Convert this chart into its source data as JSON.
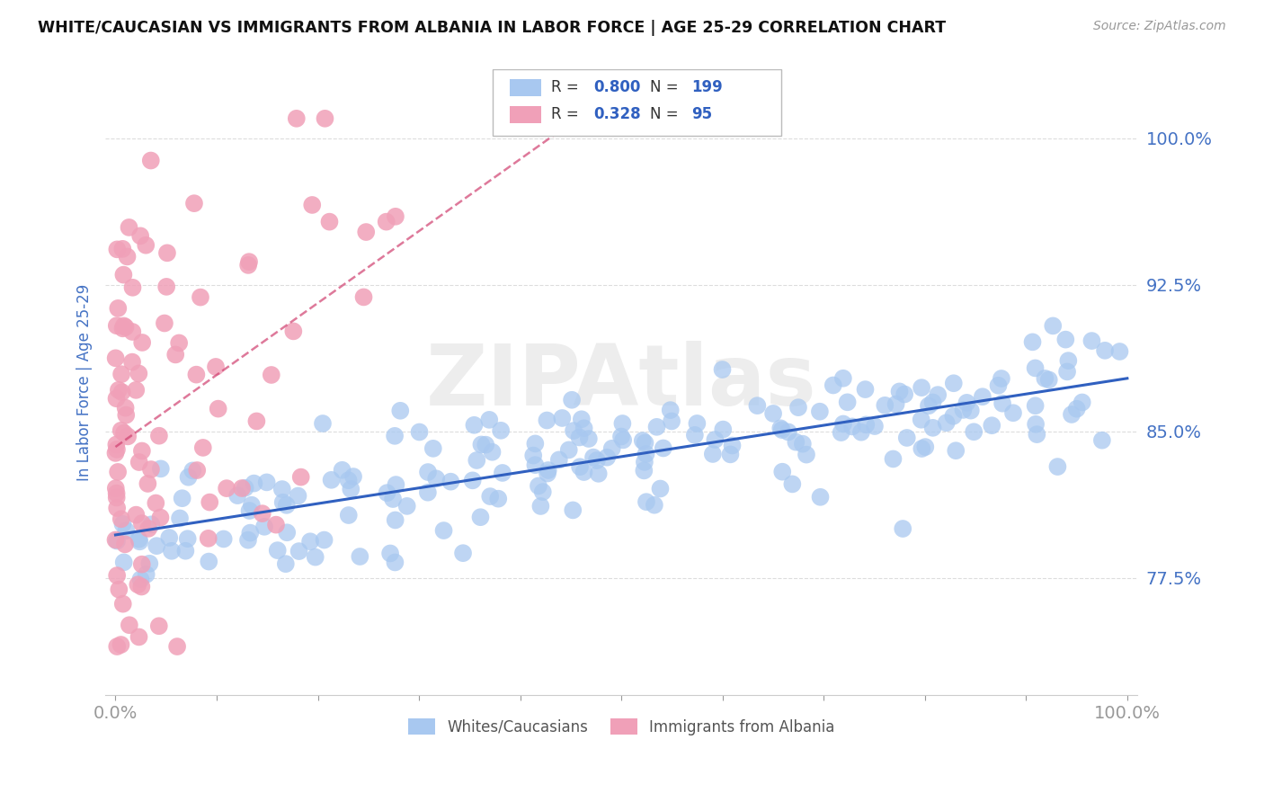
{
  "title": "WHITE/CAUCASIAN VS IMMIGRANTS FROM ALBANIA IN LABOR FORCE | AGE 25-29 CORRELATION CHART",
  "source": "Source: ZipAtlas.com",
  "ylabel": "In Labor Force | Age 25-29",
  "yticklabels": [
    "77.5%",
    "85.0%",
    "92.5%",
    "100.0%"
  ],
  "ytick_values": [
    0.775,
    0.85,
    0.925,
    1.0
  ],
  "ylim": [
    0.715,
    1.035
  ],
  "xlim": [
    -0.01,
    1.01
  ],
  "blue_color": "#a8c8f0",
  "blue_dark": "#3060c0",
  "pink_color": "#f0a0b8",
  "pink_dark": "#d04070",
  "R_blue": 0.8,
  "N_blue": 199,
  "R_pink": 0.328,
  "N_pink": 95,
  "watermark": "ZIPAtlas",
  "legend_label_blue": "Whites/Caucasians",
  "legend_label_pink": "Immigrants from Albania",
  "background_color": "#ffffff",
  "grid_color": "#dddddd",
  "title_color": "#111111",
  "axis_label_color": "#4472c4",
  "tick_label_color": "#4472c4"
}
